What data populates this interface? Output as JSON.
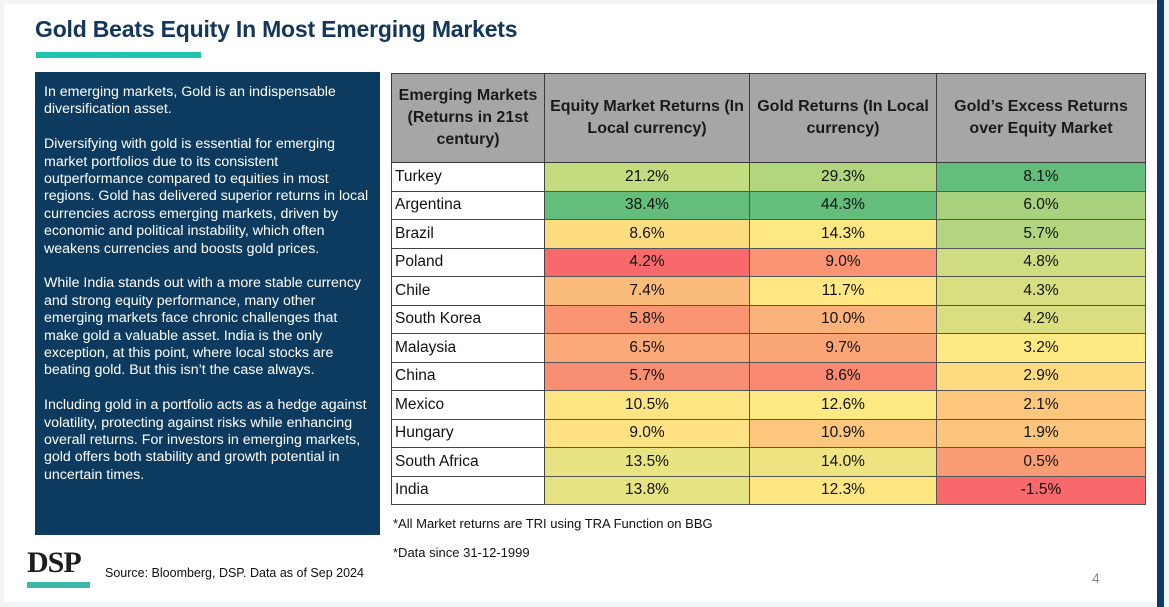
{
  "slide": {
    "title": "Gold Beats Equity In Most Emerging Markets",
    "page_number": "4",
    "accent_color": "#1fc3ae",
    "panel_color": "#0d3b5f"
  },
  "text_panel": {
    "paragraphs": [
      "In emerging markets, Gold is an indispensable diversification asset.",
      "Diversifying with gold is essential for emerging market portfolios due to its consistent outperformance compared to equities in most regions. Gold has delivered superior returns in local currencies across emerging markets, driven by economic and political instability, which often weakens currencies and boosts gold prices.",
      "While India stands out with a more stable currency and strong equity performance, many other emerging markets face chronic challenges that make gold a valuable asset. India is the only exception, at this point, where local stocks are beating gold. But this isn’t the case always.",
      "Including gold in a portfolio acts as a hedge against volatility, protecting against risks while enhancing overall returns. For investors in emerging markets, gold offers both stability and growth potential in uncertain times."
    ]
  },
  "table": {
    "headers": [
      "Emerging Markets (Returns in 21st century)",
      "Equity Market Returns (In Local currency)",
      "Gold Returns (In Local currency)",
      "Gold’s Excess Returns over Equity Market"
    ],
    "rows": [
      {
        "country": "Turkey",
        "equity": "21.2%",
        "gold": "29.3%",
        "excess": "8.1%",
        "colors": [
          "#c3dc7f",
          "#b1d67d",
          "#63be7b"
        ]
      },
      {
        "country": "Argentina",
        "equity": "38.4%",
        "gold": "44.3%",
        "excess": "6.0%",
        "colors": [
          "#63be7b",
          "#63be7b",
          "#a9d27f"
        ]
      },
      {
        "country": "Brazil",
        "equity": "8.6%",
        "gold": "14.3%",
        "excess": "5.7%",
        "colors": [
          "#fedd81",
          "#fde883",
          "#b3d57f"
        ]
      },
      {
        "country": "Poland",
        "equity": "4.2%",
        "gold": "9.0%",
        "excess": "4.8%",
        "colors": [
          "#f8696b",
          "#fa9473",
          "#cfdc81"
        ]
      },
      {
        "country": "Chile",
        "equity": "7.4%",
        "gold": "11.7%",
        "excess": "4.3%",
        "colors": [
          "#fbbb7b",
          "#ffe884",
          "#d7df81"
        ]
      },
      {
        "country": "South Korea",
        "equity": "5.8%",
        "gold": "10.0%",
        "excess": "4.2%",
        "colors": [
          "#fa9573",
          "#fbb27a",
          "#d9df81"
        ]
      },
      {
        "country": "Malaysia",
        "equity": "6.5%",
        "gold": "9.7%",
        "excess": "3.2%",
        "colors": [
          "#fba977",
          "#fba677",
          "#fee983"
        ]
      },
      {
        "country": "China",
        "equity": "5.7%",
        "gold": "8.6%",
        "excess": "2.9%",
        "colors": [
          "#f98f72",
          "#f98a71",
          "#feda80"
        ]
      },
      {
        "country": "Mexico",
        "equity": "10.5%",
        "gold": "12.6%",
        "excess": "2.1%",
        "colors": [
          "#fde583",
          "#fee983",
          "#fcc67d"
        ]
      },
      {
        "country": "Hungary",
        "equity": "9.0%",
        "gold": "10.9%",
        "excess": "1.9%",
        "colors": [
          "#fee283",
          "#fcc77d",
          "#fcc57d"
        ]
      },
      {
        "country": "South Africa",
        "equity": "13.5%",
        "gold": "14.0%",
        "excess": "0.5%",
        "colors": [
          "#e9e482",
          "#eee582",
          "#fa9d75"
        ]
      },
      {
        "country": "India",
        "equity": "13.8%",
        "gold": "12.3%",
        "excess": "-1.5%",
        "colors": [
          "#e5e382",
          "#fee683",
          "#f8696b"
        ]
      }
    ]
  },
  "notes": {
    "note1": "*All Market returns are TRI using TRA Function on BBG",
    "note2": "*Data since 31-12-1999"
  },
  "footer": {
    "logo_text": "DSP",
    "source": "Source: Bloomberg, DSP. Data as of Sep 2024"
  }
}
